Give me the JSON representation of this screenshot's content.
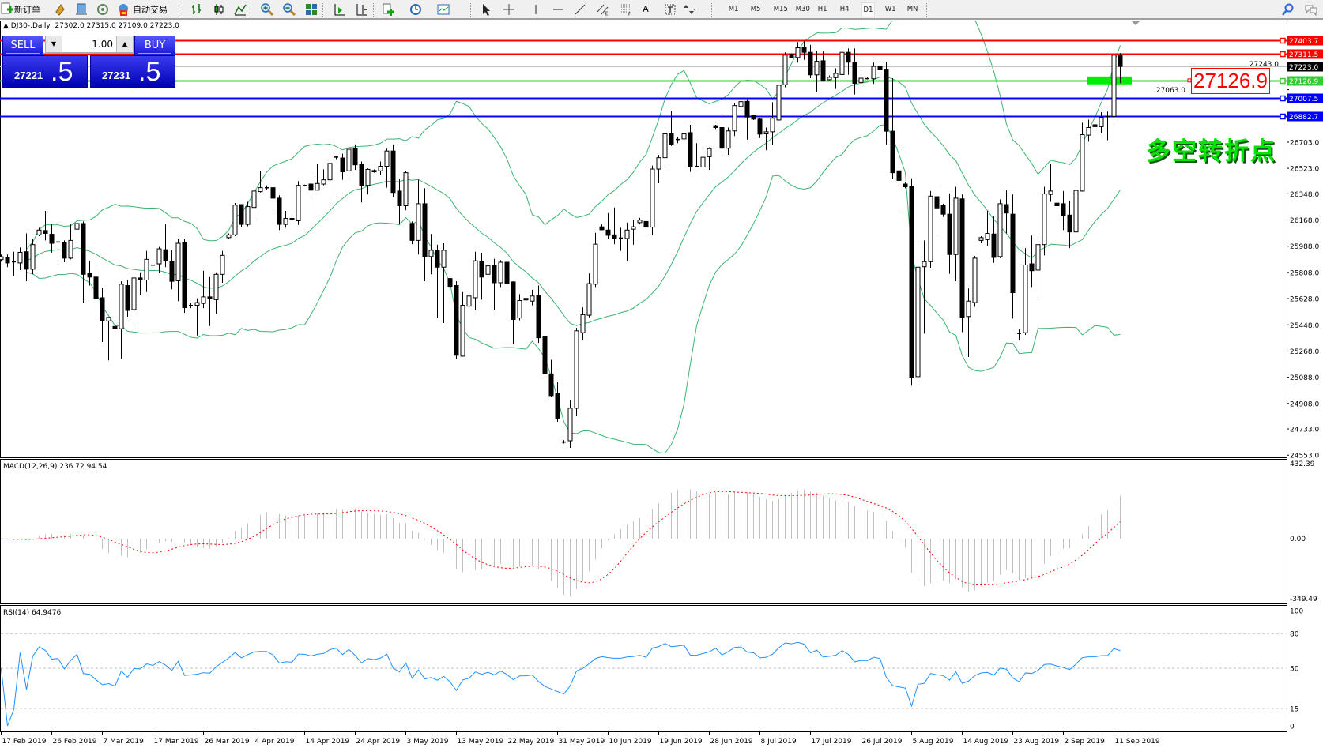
{
  "toolbar": {
    "new_order_label": "新订单",
    "auto_trading_label": "自动交易",
    "icons": [
      "new-order-icon",
      "metaeditor-icon",
      "navigator-icon",
      "signals-icon",
      "auto-trading-icon",
      "bar-chart-icon",
      "candlestick-icon",
      "line-chart-icon",
      "zoom-in-icon",
      "zoom-out-icon",
      "tile-windows-icon",
      "auto-scroll-icon",
      "chart-shift-icon",
      "indicators-icon",
      "periods-icon",
      "templates-icon",
      "cursor-icon",
      "crosshair-icon",
      "vertical-line-icon",
      "horizontal-line-icon",
      "trendline-icon",
      "equidistant-channel-icon",
      "fibonacci-icon",
      "text-icon",
      "text-label-icon",
      "arrows-icon",
      "search-icon",
      "chat-icon"
    ],
    "text_tool": "A",
    "timeframes": [
      "M1",
      "M5",
      "M15",
      "M30",
      "H1",
      "H4",
      "D1",
      "W1",
      "MN"
    ],
    "active_timeframe": "D1"
  },
  "chart_header": {
    "symbol": "DJ30-,Daily",
    "ohlc": "27302.0 27315.0 27109.0 27223.0"
  },
  "one_click": {
    "sell_label": "SELL",
    "buy_label": "BUY",
    "lot": "1.00",
    "sell_price_main": "27221",
    "sell_price_pip": ".5",
    "buy_price_main": "27231",
    "buy_price_pip": ".5"
  },
  "annotations": {
    "price_box": "27126.9",
    "text": "多空转折点",
    "text_color": "#00e600",
    "box_color": "#ff0000",
    "marker_color": "#00ee00"
  },
  "price_levels": [
    {
      "price": 27403.7,
      "label": "27403.7",
      "color": "#ff0000"
    },
    {
      "price": 27311.5,
      "label": "27311.5",
      "color": "#ff0000"
    },
    {
      "price": 27223.0,
      "label": "27223.0",
      "color": "#c0c0c0",
      "label_bg": "#000000"
    },
    {
      "price": 27126.9,
      "label": "27126.9",
      "color": "#32cd32"
    },
    {
      "price": 27007.5,
      "label": "27007.5",
      "color": "#0000ff"
    },
    {
      "price": 26882.7,
      "label": "26882.7",
      "color": "#0000ff"
    }
  ],
  "price_axis": {
    "range": [
      24538,
      27549
    ],
    "ticks": [
      {
        "price": 27243.0,
        "label": "27243.0"
      },
      {
        "price": 27063.0,
        "label": "27063.0"
      },
      {
        "price": 26703.0,
        "label": "26703.0"
      },
      {
        "price": 26523.0,
        "label": "26523.0"
      },
      {
        "price": 26348.0,
        "label": "26348.0"
      },
      {
        "price": 26168.0,
        "label": "26168.0"
      },
      {
        "price": 25988.0,
        "label": "25988.0"
      },
      {
        "price": 25808.0,
        "label": "25808.0"
      },
      {
        "price": 25628.0,
        "label": "25628.0"
      },
      {
        "price": 25448.0,
        "label": "25448.0"
      },
      {
        "price": 25268.0,
        "label": "25268.0"
      },
      {
        "price": 25088.0,
        "label": "25088.0"
      },
      {
        "price": 24908.0,
        "label": "24908.0"
      },
      {
        "price": 24733.0,
        "label": "24733.0"
      },
      {
        "price": 24553.0,
        "label": "24553.0"
      }
    ]
  },
  "macd": {
    "label": "MACD(12,26,9) 236.72 94.54",
    "range": [
      -349.49,
      432.39
    ],
    "ticks": [
      "432.39",
      "0.00",
      "-349.49"
    ],
    "hist_color": "#c0c0c0",
    "signal_color": "#ff0000"
  },
  "rsi": {
    "label": "RSI(14) 64.9476",
    "levels": [
      80,
      50,
      15
    ],
    "ticks": [
      "100",
      "80",
      "50",
      "15",
      "0"
    ],
    "color": "#1e90ff"
  },
  "bollinger_color": "#3cb371",
  "date_labels": [
    "17 Feb 2019",
    "26 Feb 2019",
    "7 Mar 2019",
    "17 Mar 2019",
    "26 Mar 2019",
    "4 Apr 2019",
    "14 Apr 2019",
    "24 Apr 2019",
    "3 May 2019",
    "13 May 2019",
    "22 May 2019",
    "31 May 2019",
    "10 Jun 2019",
    "19 Jun 2019",
    "28 Jun 2019",
    "8 Jul 2019",
    "17 Jul 2019",
    "26 Jul 2019",
    "5 Aug 2019",
    "14 Aug 2019",
    "23 Aug 2019",
    "2 Sep 2019",
    "11 Sep 2019"
  ],
  "chart_data": {
    "type": "candlestick",
    "symbol": "DJ30-",
    "timeframe": "Daily",
    "candles_ohlc": [
      [
        25896,
        25931,
        25882,
        25915
      ],
      [
        25911,
        25931,
        25844,
        25873
      ],
      [
        25882,
        25950,
        25785,
        25880
      ],
      [
        25873,
        25979,
        25824,
        25946
      ],
      [
        25950,
        26076,
        25747,
        25830
      ],
      [
        25830,
        26037,
        25795,
        25999
      ],
      [
        26066,
        26115,
        26057,
        26099
      ],
      [
        26096,
        26231,
        26028,
        26076
      ],
      [
        26070,
        26144,
        25944,
        26008
      ],
      [
        26018,
        26144,
        25873,
        26016
      ],
      [
        26012,
        26028,
        25878,
        25906
      ],
      [
        25906,
        26138,
        25898,
        26028
      ],
      [
        26105,
        26163,
        26086,
        26144
      ],
      [
        26144,
        26158,
        25601,
        25795
      ],
      [
        25805,
        25886,
        25718,
        25776
      ],
      [
        25776,
        25828,
        25621,
        25630
      ],
      [
        25634,
        25704,
        25330,
        25479
      ],
      [
        25475,
        25499,
        25204,
        25499
      ],
      [
        25437,
        25471,
        25417,
        25421
      ],
      [
        25421,
        25747,
        25214,
        25727
      ],
      [
        25718,
        25756,
        25504,
        25547
      ],
      [
        25553,
        25809,
        25456,
        25770
      ],
      [
        25770,
        25809,
        25650,
        25756
      ],
      [
        25756,
        25956,
        25673,
        25898
      ],
      [
        25857,
        25873,
        25840,
        25859
      ],
      [
        25867,
        25983,
        25805,
        25970
      ],
      [
        25964,
        26138,
        25844,
        25886
      ],
      [
        25886,
        25960,
        25692,
        25747
      ],
      [
        25751,
        26041,
        25611,
        26008
      ],
      [
        26014,
        26037,
        25530,
        25566
      ],
      [
        25582,
        25601,
        25563,
        25580
      ],
      [
        25582,
        25630,
        25375,
        25601
      ],
      [
        25595,
        25820,
        25563,
        25640
      ],
      [
        25640,
        25776,
        25440,
        25627
      ],
      [
        25621,
        25809,
        25524,
        25795
      ],
      [
        25795,
        25956,
        25737,
        25925
      ],
      [
        26047,
        26076,
        26037,
        26066
      ],
      [
        26066,
        26285,
        26057,
        26270
      ],
      [
        26274,
        26274,
        26119,
        26138
      ],
      [
        26138,
        26293,
        26125,
        26260
      ],
      [
        26254,
        26406,
        26192,
        26367
      ],
      [
        26363,
        26502,
        26357,
        26390
      ],
      [
        26390,
        26406,
        26377,
        26388
      ],
      [
        26390,
        26390,
        26241,
        26318
      ],
      [
        26318,
        26338,
        26099,
        26138
      ],
      [
        26138,
        26231,
        26115,
        26179
      ],
      [
        26179,
        26221,
        26053,
        26169
      ],
      [
        26163,
        26435,
        26134,
        26406
      ],
      [
        26406,
        26411,
        26402,
        26404
      ],
      [
        26415,
        26468,
        26309,
        26373
      ],
      [
        26373,
        26551,
        26371,
        26419
      ],
      [
        26415,
        26516,
        26406,
        26444
      ],
      [
        26444,
        26596,
        26305,
        26557
      ],
      [
        26599,
        26609,
        26586,
        26601
      ],
      [
        26594,
        26623,
        26444,
        26499
      ],
      [
        26506,
        26667,
        26454,
        26654
      ],
      [
        26658,
        26687,
        26512,
        26547
      ],
      [
        26551,
        26570,
        26289,
        26406
      ],
      [
        26406,
        26522,
        26344,
        26516
      ],
      [
        26508,
        26516,
        26493,
        26499
      ],
      [
        26506,
        26570,
        26479,
        26537
      ],
      [
        26537,
        26658,
        26390,
        26642
      ],
      [
        26642,
        26687,
        26324,
        26357
      ],
      [
        26367,
        26448,
        26138,
        26266
      ],
      [
        26266,
        26502,
        26235,
        26493
      ],
      [
        26144,
        26158,
        26002,
        26028
      ],
      [
        26028,
        26444,
        25931,
        26280
      ],
      [
        26280,
        26386,
        25747,
        25917
      ],
      [
        25917,
        26072,
        25795,
        25960
      ],
      [
        25960,
        25999,
        25495,
        25844
      ],
      [
        25844,
        26008,
        25460,
        25960
      ],
      [
        25766,
        25782,
        25708,
        25712
      ],
      [
        25718,
        25747,
        25214,
        25239
      ],
      [
        25233,
        25673,
        25230,
        25582
      ],
      [
        25576,
        25669,
        25320,
        25646
      ],
      [
        25634,
        25950,
        25549,
        25888
      ],
      [
        25886,
        25944,
        25621,
        25776
      ],
      [
        25795,
        25873,
        25785,
        25853
      ],
      [
        25859,
        25902,
        25549,
        25737
      ],
      [
        25737,
        25892,
        25708,
        25878
      ],
      [
        25878,
        25902,
        25718,
        25731
      ],
      [
        25743,
        25747,
        25316,
        25485
      ],
      [
        25495,
        25659,
        25479,
        25615
      ],
      [
        25630,
        25654,
        25615,
        25619
      ],
      [
        25611,
        25689,
        25582,
        25646
      ],
      [
        25650,
        25718,
        25324,
        25359
      ],
      [
        25369,
        25375,
        24937,
        25111
      ],
      [
        25111,
        25208,
        24956,
        24962
      ],
      [
        24975,
        25053,
        24782,
        24807
      ],
      [
        24642,
        24657,
        24632,
        24644
      ],
      [
        24652,
        24929,
        24603,
        24875
      ],
      [
        24875,
        25427,
        24820,
        25407
      ],
      [
        25394,
        25568,
        25340,
        25518
      ],
      [
        25514,
        25801,
        25499,
        25731
      ],
      [
        25727,
        26080,
        25708,
        26002
      ],
      [
        26121,
        26138,
        26099,
        26101
      ],
      [
        26099,
        26216,
        26041,
        26063
      ],
      [
        26066,
        26254,
        26002,
        26043
      ],
      [
        26043,
        26115,
        25956,
        26045
      ],
      [
        26041,
        26150,
        25886,
        26099
      ],
      [
        26105,
        26169,
        25999,
        26121
      ],
      [
        26150,
        26183,
        26138,
        26167
      ],
      [
        26158,
        26212,
        26053,
        26119
      ],
      [
        26119,
        26541,
        26063,
        26518
      ],
      [
        26518,
        26615,
        26421,
        26596
      ],
      [
        26596,
        26809,
        26541,
        26760
      ],
      [
        26760,
        26915,
        26677,
        26687
      ],
      [
        26720,
        26735,
        26696,
        26722
      ],
      [
        26725,
        26813,
        26716,
        26760
      ],
      [
        26768,
        26822,
        26499,
        26532
      ],
      [
        26535,
        26696,
        26532,
        26537
      ],
      [
        26532,
        26658,
        26440,
        26599
      ],
      [
        26603,
        26667,
        26512,
        26658
      ],
      [
        26816,
        26822,
        26793,
        26803
      ],
      [
        26803,
        26886,
        26599,
        26661
      ],
      [
        26661,
        26803,
        26615,
        26780
      ],
      [
        26780,
        26971,
        26745,
        26954
      ],
      [
        26948,
        26997,
        26939,
        26981
      ],
      [
        26983,
        26997,
        26720,
        26875
      ],
      [
        26886,
        26890,
        26855,
        26861
      ],
      [
        26861,
        26867,
        26731,
        26758
      ],
      [
        26760,
        26803,
        26648,
        26774
      ],
      [
        26774,
        26977,
        26681,
        26867
      ],
      [
        26855,
        27099,
        26851,
        27094
      ],
      [
        27097,
        27320,
        27080,
        27301
      ],
      [
        27307,
        27313,
        27278,
        27284
      ],
      [
        27284,
        27390,
        27249,
        27351
      ],
      [
        27355,
        27398,
        27268,
        27320
      ],
      [
        27320,
        27371,
        27142,
        27165
      ],
      [
        27165,
        27332,
        27049,
        27258
      ],
      [
        27262,
        27326,
        27119,
        27123
      ],
      [
        27132,
        27161,
        27127,
        27148
      ],
      [
        27146,
        27210,
        27068,
        27175
      ],
      [
        27167,
        27355,
        27152,
        27320
      ],
      [
        27320,
        27346,
        27165,
        27252
      ],
      [
        27252,
        27346,
        27030,
        27107
      ],
      [
        27113,
        27185,
        27099,
        27142
      ],
      [
        27138,
        27146,
        27134,
        27140
      ],
      [
        27138,
        27249,
        27103,
        27223
      ],
      [
        27223,
        27249,
        27035,
        27200
      ],
      [
        27204,
        27254,
        26687,
        26778
      ],
      [
        26778,
        27142,
        26448,
        26493
      ],
      [
        26506,
        26654,
        26208,
        26440
      ],
      [
        26415,
        26425,
        26386,
        26396
      ],
      [
        26396,
        26454,
        25030,
        25088
      ],
      [
        25092,
        25993,
        25072,
        25844
      ],
      [
        25847,
        26028,
        25388,
        25882
      ],
      [
        25882,
        26367,
        25840,
        26332
      ],
      [
        26328,
        26386,
        26070,
        26251
      ],
      [
        26270,
        26280,
        26189,
        26208
      ],
      [
        26208,
        26351,
        25799,
        25931
      ],
      [
        25931,
        26396,
        25747,
        26318
      ],
      [
        26313,
        26344,
        25398,
        25499
      ],
      [
        25505,
        25698,
        25227,
        25611
      ],
      [
        25601,
        25921,
        25572,
        25906
      ],
      [
        26028,
        26057,
        26008,
        26047
      ],
      [
        26033,
        26231,
        25989,
        26076
      ],
      [
        26072,
        26192,
        25873,
        25911
      ],
      [
        25917,
        26309,
        25906,
        26280
      ],
      [
        26274,
        26371,
        26076,
        26216
      ],
      [
        26208,
        26344,
        25491,
        25669
      ],
      [
        25388,
        25417,
        25340,
        25390
      ],
      [
        25394,
        25975,
        25379,
        25859
      ],
      [
        25867,
        26061,
        25708,
        25820
      ],
      [
        25824,
        26053,
        25615,
        25999
      ],
      [
        25999,
        26396,
        25925,
        26347
      ],
      [
        26344,
        26551,
        26293,
        26367
      ],
      [
        26284,
        26285,
        26260,
        26266
      ],
      [
        26280,
        26367,
        26099,
        26196
      ],
      [
        26202,
        26299,
        25975,
        26086
      ],
      [
        26086,
        26380,
        26082,
        26371
      ],
      [
        26367,
        26836,
        26363,
        26754
      ],
      [
        26751,
        26857,
        26706,
        26803
      ],
      [
        26822,
        26828,
        26803,
        26809
      ],
      [
        26809,
        26909,
        26764,
        26871
      ],
      [
        26880,
        26913,
        26716,
        26875
      ],
      [
        26880,
        27313,
        26842,
        27301
      ],
      [
        27302,
        27315,
        27109,
        27223
      ]
    ],
    "indicators": [
      "Bollinger Bands(20,2)",
      "MACD(12,26,9)",
      "RSI(14)"
    ],
    "bull_candle": "hollow",
    "bear_candle": "filled",
    "grid": false
  }
}
